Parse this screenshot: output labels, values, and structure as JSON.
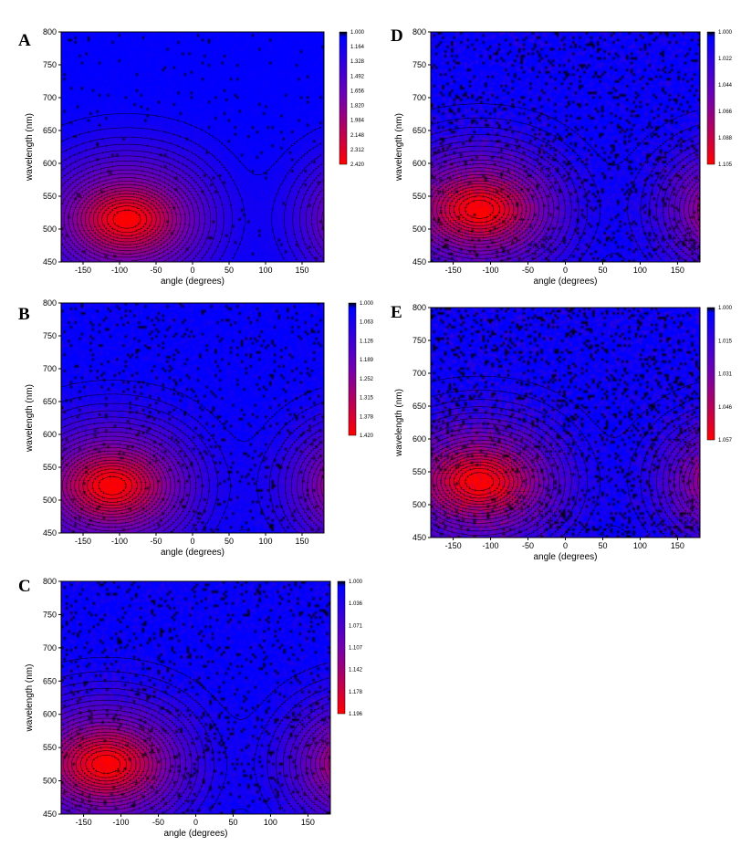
{
  "chart_data": [
    {
      "type": "heatmap",
      "panel": "A",
      "xlabel": "angle (degrees)",
      "ylabel": "wavelength (nm)",
      "xlim": [
        -180,
        180
      ],
      "ylim": [
        450,
        800
      ],
      "x_ticks": [
        "-150",
        "-100",
        "-50",
        "0",
        "50",
        "100",
        "150"
      ],
      "y_ticks": [
        "450",
        "500",
        "550",
        "600",
        "650",
        "700",
        "750",
        "800"
      ],
      "colorbar": [
        "1.000",
        "1.164",
        "1.328",
        "1.492",
        "1.656",
        "1.820",
        "1.984",
        "2.148",
        "2.312",
        "2.420"
      ],
      "peak": {
        "angle": -90,
        "wavelength": 515,
        "value": 2.42
      },
      "saddle": {
        "angle": 70,
        "wavelength": 522
      },
      "noise": 0.12
    },
    {
      "type": "heatmap",
      "panel": "B",
      "xlabel": "angle (degrees)",
      "ylabel": "wavelength (nm)",
      "xlim": [
        -180,
        180
      ],
      "ylim": [
        450,
        800
      ],
      "x_ticks": [
        "-150",
        "-100",
        "-50",
        "0",
        "50",
        "100",
        "150"
      ],
      "y_ticks": [
        "450",
        "500",
        "550",
        "600",
        "650",
        "700",
        "750",
        "800"
      ],
      "colorbar": [
        "1.000",
        "1.063",
        "1.126",
        "1.189",
        "1.252",
        "1.315",
        "1.378",
        "1.420"
      ],
      "peak": {
        "angle": -110,
        "wavelength": 522,
        "value": 1.42
      },
      "saddle": {
        "angle": 70,
        "wavelength": 522
      },
      "noise": 0.35
    },
    {
      "type": "heatmap",
      "panel": "C",
      "xlabel": "angle (degrees)",
      "ylabel": "wavelength (nm)",
      "xlim": [
        -180,
        180
      ],
      "ylim": [
        450,
        800
      ],
      "x_ticks": [
        "-150",
        "-100",
        "-50",
        "0",
        "50",
        "100",
        "150"
      ],
      "y_ticks": [
        "450",
        "500",
        "550",
        "600",
        "650",
        "700",
        "750",
        "800"
      ],
      "colorbar": [
        "1.000",
        "1.036",
        "1.071",
        "1.107",
        "1.142",
        "1.178",
        "1.196"
      ],
      "peak": {
        "angle": -120,
        "wavelength": 525,
        "value": 1.196
      },
      "saddle": {
        "angle": 70,
        "wavelength": 522
      },
      "noise": 0.45
    },
    {
      "type": "heatmap",
      "panel": "D",
      "xlabel": "angle (degrees)",
      "ylabel": "wavelength (nm)",
      "xlim": [
        -180,
        180
      ],
      "ylim": [
        450,
        800
      ],
      "x_ticks": [
        "-150",
        "-100",
        "-50",
        "0",
        "50",
        "100",
        "150"
      ],
      "y_ticks": [
        "450",
        "500",
        "550",
        "600",
        "650",
        "700",
        "750",
        "800"
      ],
      "colorbar": [
        "1.000",
        "1.022",
        "1.044",
        "1.066",
        "1.088",
        "1.105"
      ],
      "peak": {
        "angle": -115,
        "wavelength": 530,
        "value": 1.105
      },
      "saddle": {
        "angle": 70,
        "wavelength": 530
      },
      "noise": 0.6
    },
    {
      "type": "heatmap",
      "panel": "E",
      "xlabel": "angle (degrees)",
      "ylabel": "wavelength (nm)",
      "xlim": [
        -180,
        180
      ],
      "ylim": [
        450,
        800
      ],
      "x_ticks": [
        "-150",
        "-100",
        "-50",
        "0",
        "50",
        "100",
        "150"
      ],
      "y_ticks": [
        "450",
        "500",
        "550",
        "600",
        "650",
        "700",
        "750",
        "800"
      ],
      "colorbar": [
        "1.000",
        "1.015",
        "1.031",
        "1.046",
        "1.057"
      ],
      "peak": {
        "angle": -115,
        "wavelength": 535,
        "value": 1.057
      },
      "saddle": {
        "angle": 70,
        "wavelength": 535
      },
      "noise": 0.75
    }
  ]
}
